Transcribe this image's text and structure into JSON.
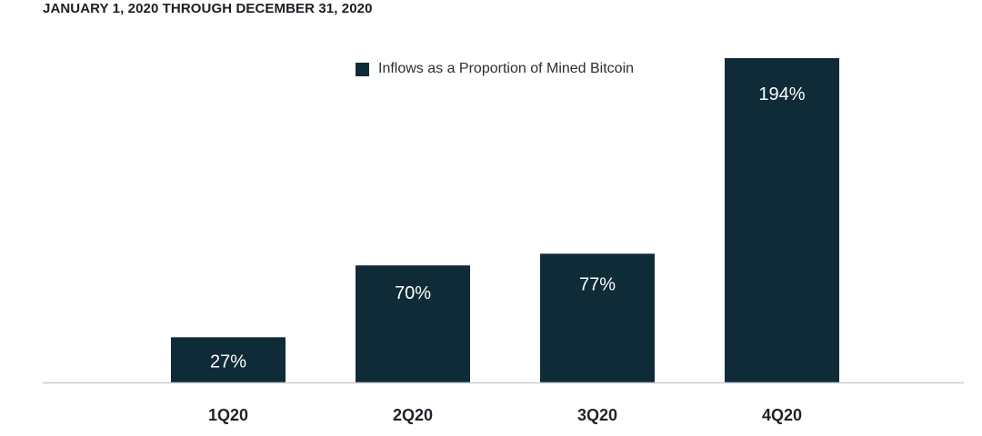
{
  "header": {
    "subtitle": "JANUARY 1, 2020 THROUGH DECEMBER 31, 2020"
  },
  "colors": {
    "bar": "#0f2b38",
    "axis": "#c9cdd1"
  },
  "chart_data": {
    "type": "bar",
    "subtitle": "JANUARY 1, 2020 THROUGH DECEMBER 31, 2020",
    "categories": [
      "1Q20",
      "2Q20",
      "3Q20",
      "4Q20"
    ],
    "series": [
      {
        "name": "Inflows as a Proportion of Mined Bitcoin",
        "values": [
          27,
          70,
          77,
          194
        ]
      }
    ],
    "data_labels": [
      "27%",
      "70%",
      "77%",
      "194%"
    ],
    "ylim": [
      0,
      194
    ],
    "grid": false,
    "legend_position": "top-center"
  }
}
